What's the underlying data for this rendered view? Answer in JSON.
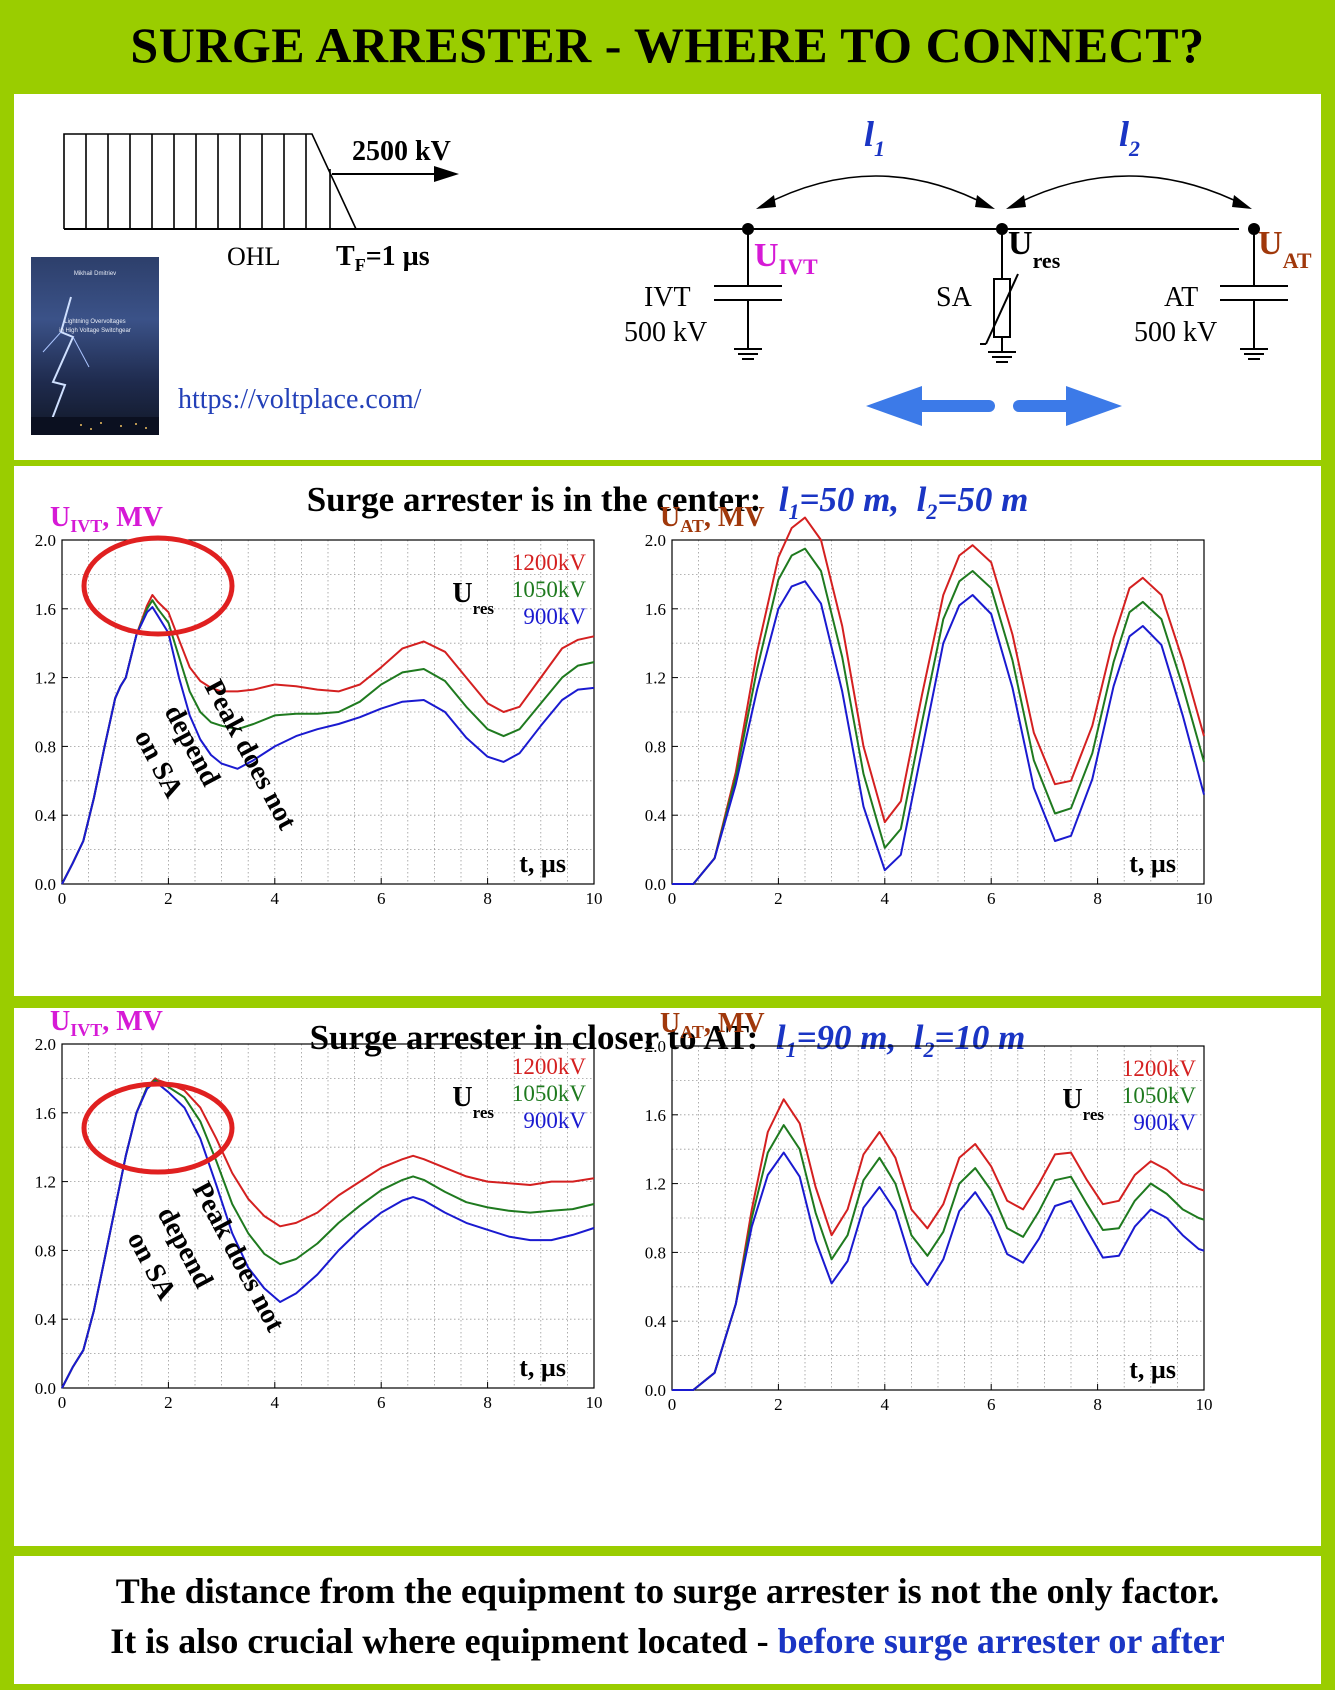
{
  "title": "SURGE ARRESTER - WHERE TO CONNECT?",
  "diagram": {
    "surge_label": "2500 kV",
    "ohl_label": "OHL",
    "tf_label": {
      "T": "T",
      "F": "F",
      "rest": "=1 µs"
    },
    "l1": {
      "letter": "l",
      "sub": "1"
    },
    "l2": {
      "letter": "l",
      "sub": "2"
    },
    "u_ivt": {
      "U": "U",
      "sub": "IVT"
    },
    "u_res": {
      "U": "U",
      "sub": "res"
    },
    "u_at": {
      "U": "U",
      "sub": "AT"
    },
    "ivt_label": "IVT",
    "ivt_voltage": "500 kV",
    "sa_label": "SA",
    "at_label": "AT",
    "at_voltage": "500 kV",
    "url": "https://voltplace.com/",
    "book": {
      "author": "Mikhail Dmitriev",
      "title_line1": "Lightning Overvoltages",
      "title_line2": "in High Voltage Switchgear"
    }
  },
  "case1": {
    "header_text": "Surge arrester is in the center:",
    "l1_value": "=50 m,",
    "l2_value": "=50 m",
    "l1": {
      "letter": "l",
      "sub": "1"
    },
    "l2": {
      "letter": "l",
      "sub": "2"
    }
  },
  "case2": {
    "header_text": "Surge arrester in closer to AT:",
    "l1_value": "=90 m,",
    "l2_value": "=10 m",
    "l1": {
      "letter": "l",
      "sub": "1"
    },
    "l2": {
      "letter": "l",
      "sub": "2"
    }
  },
  "annotation": "Peak does not depend on SA",
  "footer": {
    "line1": "The distance from the equipment to surge arrester is not the only factor.",
    "line2_black": "It is also crucial where equipment located - ",
    "line2_blue": "before surge arrester or after"
  },
  "colors": {
    "red": "#d42020",
    "green": "#1f7a1f",
    "blue": "#1a1ad0",
    "magenta": "#d61ad6",
    "brown": "#a0380b"
  },
  "chart_data": [
    {
      "id": "c1-ivt",
      "type": "line",
      "ylabel": {
        "U": "U",
        "sub": "IVT",
        "rest": ", MV"
      },
      "xlabel": "t, µs",
      "xlim": [
        0,
        10
      ],
      "ylim": [
        0,
        2
      ],
      "xticks": [
        "0",
        "2",
        "4",
        "6",
        "8",
        "10"
      ],
      "yticks": [
        "0.0",
        "0.4",
        "0.8",
        "1.2",
        "1.6",
        "2.0"
      ],
      "grid": true,
      "legend": {
        "title": "U",
        "title_sub": "res",
        "entries": [
          "1200kV",
          "1050kV",
          "900kV"
        ]
      },
      "series": [
        {
          "name": "1200kV",
          "color": "red",
          "x": [
            0,
            0.2,
            0.4,
            0.6,
            0.8,
            1.0,
            1.1,
            1.2,
            1.4,
            1.6,
            1.7,
            1.8,
            2.0,
            2.2,
            2.4,
            2.6,
            2.8,
            3.0,
            3.3,
            3.6,
            4.0,
            4.4,
            4.8,
            5.2,
            5.6,
            6.0,
            6.4,
            6.8,
            7.2,
            7.6,
            8.0,
            8.3,
            8.6,
            9.0,
            9.4,
            9.7,
            10
          ],
          "y": [
            0,
            0.12,
            0.25,
            0.5,
            0.8,
            1.08,
            1.15,
            1.2,
            1.45,
            1.62,
            1.68,
            1.64,
            1.58,
            1.42,
            1.26,
            1.18,
            1.14,
            1.12,
            1.12,
            1.13,
            1.16,
            1.15,
            1.13,
            1.12,
            1.16,
            1.26,
            1.37,
            1.41,
            1.35,
            1.2,
            1.05,
            1.0,
            1.03,
            1.2,
            1.37,
            1.42,
            1.44
          ]
        },
        {
          "name": "1050kV",
          "color": "green",
          "x": [
            0,
            0.2,
            0.4,
            0.6,
            0.8,
            1.0,
            1.1,
            1.2,
            1.4,
            1.6,
            1.7,
            1.8,
            2.0,
            2.2,
            2.4,
            2.6,
            2.8,
            3.0,
            3.3,
            3.6,
            4.0,
            4.4,
            4.8,
            5.2,
            5.6,
            6.0,
            6.4,
            6.8,
            7.2,
            7.6,
            8.0,
            8.3,
            8.6,
            9.0,
            9.4,
            9.7,
            10
          ],
          "y": [
            0,
            0.12,
            0.25,
            0.5,
            0.8,
            1.08,
            1.15,
            1.2,
            1.45,
            1.6,
            1.65,
            1.6,
            1.52,
            1.32,
            1.12,
            1.0,
            0.94,
            0.92,
            0.9,
            0.93,
            0.98,
            0.99,
            0.99,
            1.0,
            1.06,
            1.16,
            1.23,
            1.25,
            1.18,
            1.03,
            0.9,
            0.86,
            0.9,
            1.05,
            1.2,
            1.27,
            1.29
          ]
        },
        {
          "name": "900kV",
          "color": "blue",
          "x": [
            0,
            0.2,
            0.4,
            0.6,
            0.8,
            1.0,
            1.1,
            1.2,
            1.4,
            1.6,
            1.7,
            1.8,
            2.0,
            2.2,
            2.4,
            2.6,
            2.8,
            3.0,
            3.3,
            3.6,
            4.0,
            4.4,
            4.8,
            5.2,
            5.6,
            6.0,
            6.4,
            6.8,
            7.2,
            7.6,
            8.0,
            8.3,
            8.6,
            9.0,
            9.4,
            9.7,
            10
          ],
          "y": [
            0,
            0.12,
            0.25,
            0.5,
            0.8,
            1.08,
            1.15,
            1.2,
            1.45,
            1.58,
            1.61,
            1.56,
            1.46,
            1.2,
            0.98,
            0.84,
            0.75,
            0.7,
            0.67,
            0.72,
            0.8,
            0.86,
            0.9,
            0.93,
            0.97,
            1.02,
            1.06,
            1.07,
            1.0,
            0.85,
            0.74,
            0.71,
            0.76,
            0.92,
            1.07,
            1.13,
            1.14
          ]
        }
      ]
    },
    {
      "id": "c1-at",
      "type": "line",
      "ylabel": {
        "U": "U",
        "sub": "AT",
        "rest": ", MV"
      },
      "xlabel": "t, µs",
      "xlim": [
        0,
        10
      ],
      "ylim": [
        0,
        2
      ],
      "xticks": [
        "0",
        "2",
        "4",
        "6",
        "8",
        "10"
      ],
      "yticks": [
        "0.0",
        "0.4",
        "0.8",
        "1.2",
        "1.6",
        "2.0"
      ],
      "grid": true,
      "series": [
        {
          "name": "1200kV",
          "color": "red",
          "x": [
            0,
            0.4,
            0.8,
            1.2,
            1.6,
            2.0,
            2.25,
            2.5,
            2.8,
            3.2,
            3.6,
            4.0,
            4.3,
            4.7,
            5.1,
            5.4,
            5.65,
            6.0,
            6.4,
            6.8,
            7.2,
            7.5,
            7.9,
            8.3,
            8.6,
            8.85,
            9.2,
            9.6,
            10
          ],
          "y": [
            0,
            0,
            0.15,
            0.65,
            1.35,
            1.9,
            2.07,
            2.13,
            2.0,
            1.5,
            0.8,
            0.36,
            0.48,
            1.1,
            1.68,
            1.91,
            1.97,
            1.87,
            1.45,
            0.88,
            0.58,
            0.6,
            0.92,
            1.43,
            1.72,
            1.78,
            1.68,
            1.3,
            0.86
          ]
        },
        {
          "name": "1050kV",
          "color": "green",
          "x": [
            0,
            0.4,
            0.8,
            1.2,
            1.6,
            2.0,
            2.25,
            2.5,
            2.8,
            3.2,
            3.6,
            4.0,
            4.3,
            4.7,
            5.1,
            5.4,
            5.65,
            6.0,
            6.4,
            6.8,
            7.2,
            7.5,
            7.9,
            8.3,
            8.6,
            8.85,
            9.2,
            9.6,
            10
          ],
          "y": [
            0,
            0,
            0.15,
            0.62,
            1.25,
            1.77,
            1.91,
            1.95,
            1.82,
            1.32,
            0.64,
            0.21,
            0.32,
            0.94,
            1.54,
            1.76,
            1.82,
            1.72,
            1.3,
            0.72,
            0.41,
            0.44,
            0.76,
            1.29,
            1.58,
            1.64,
            1.54,
            1.15,
            0.71
          ]
        },
        {
          "name": "900kV",
          "color": "blue",
          "x": [
            0,
            0.4,
            0.8,
            1.2,
            1.6,
            2.0,
            2.25,
            2.5,
            2.8,
            3.2,
            3.6,
            4.0,
            4.3,
            4.7,
            5.1,
            5.4,
            5.65,
            6.0,
            6.4,
            6.8,
            7.2,
            7.5,
            7.9,
            8.3,
            8.6,
            8.85,
            9.2,
            9.6,
            10
          ],
          "y": [
            0,
            0,
            0.15,
            0.58,
            1.13,
            1.6,
            1.73,
            1.76,
            1.63,
            1.12,
            0.45,
            0.08,
            0.17,
            0.78,
            1.4,
            1.62,
            1.68,
            1.57,
            1.14,
            0.56,
            0.25,
            0.28,
            0.61,
            1.15,
            1.44,
            1.5,
            1.39,
            0.98,
            0.52
          ]
        }
      ]
    },
    {
      "id": "c2-ivt",
      "type": "line",
      "ylabel": {
        "U": "U",
        "sub": "IVT",
        "rest": ", MV"
      },
      "xlabel": "t, µs",
      "xlim": [
        0,
        10
      ],
      "ylim": [
        0,
        2
      ],
      "xticks": [
        "0",
        "2",
        "4",
        "6",
        "8",
        "10"
      ],
      "yticks": [
        "0.0",
        "0.4",
        "0.8",
        "1.2",
        "1.6",
        "2.0"
      ],
      "grid": true,
      "legend": {
        "title": "U",
        "title_sub": "res",
        "entries": [
          "1200kV",
          "1050kV",
          "900kV"
        ]
      },
      "series": [
        {
          "name": "1200kV",
          "color": "red",
          "x": [
            0,
            0.2,
            0.4,
            0.6,
            0.8,
            1.0,
            1.2,
            1.4,
            1.6,
            1.75,
            1.8,
            2.0,
            2.3,
            2.6,
            2.9,
            3.2,
            3.5,
            3.8,
            4.1,
            4.4,
            4.8,
            5.2,
            5.6,
            6.0,
            6.4,
            6.6,
            6.8,
            7.2,
            7.6,
            8.0,
            8.4,
            8.8,
            9.2,
            9.6,
            10
          ],
          "y": [
            0,
            0.12,
            0.22,
            0.45,
            0.75,
            1.05,
            1.35,
            1.6,
            1.75,
            1.8,
            1.79,
            1.77,
            1.73,
            1.63,
            1.45,
            1.25,
            1.1,
            1.0,
            0.94,
            0.96,
            1.02,
            1.12,
            1.2,
            1.28,
            1.33,
            1.35,
            1.33,
            1.28,
            1.23,
            1.2,
            1.19,
            1.18,
            1.2,
            1.2,
            1.22
          ]
        },
        {
          "name": "1050kV",
          "color": "green",
          "x": [
            0,
            0.2,
            0.4,
            0.6,
            0.8,
            1.0,
            1.2,
            1.4,
            1.6,
            1.75,
            1.8,
            2.0,
            2.3,
            2.6,
            2.9,
            3.2,
            3.5,
            3.8,
            4.1,
            4.4,
            4.8,
            5.2,
            5.6,
            6.0,
            6.4,
            6.6,
            6.8,
            7.2,
            7.6,
            8.0,
            8.4,
            8.8,
            9.2,
            9.6,
            10
          ],
          "y": [
            0,
            0.12,
            0.22,
            0.45,
            0.75,
            1.05,
            1.35,
            1.6,
            1.75,
            1.79,
            1.78,
            1.75,
            1.69,
            1.55,
            1.32,
            1.07,
            0.9,
            0.78,
            0.72,
            0.75,
            0.84,
            0.96,
            1.06,
            1.15,
            1.21,
            1.23,
            1.21,
            1.14,
            1.08,
            1.05,
            1.03,
            1.02,
            1.03,
            1.04,
            1.07
          ]
        },
        {
          "name": "900kV",
          "color": "blue",
          "x": [
            0,
            0.2,
            0.4,
            0.6,
            0.8,
            1.0,
            1.2,
            1.4,
            1.6,
            1.75,
            1.8,
            2.0,
            2.3,
            2.6,
            2.9,
            3.2,
            3.5,
            3.8,
            4.1,
            4.4,
            4.8,
            5.2,
            5.6,
            6.0,
            6.4,
            6.6,
            6.8,
            7.2,
            7.6,
            8.0,
            8.4,
            8.8,
            9.2,
            9.6,
            10
          ],
          "y": [
            0,
            0.12,
            0.22,
            0.45,
            0.75,
            1.05,
            1.35,
            1.6,
            1.74,
            1.78,
            1.77,
            1.72,
            1.63,
            1.45,
            1.18,
            0.9,
            0.7,
            0.58,
            0.5,
            0.55,
            0.66,
            0.8,
            0.92,
            1.02,
            1.09,
            1.11,
            1.09,
            1.02,
            0.96,
            0.92,
            0.88,
            0.86,
            0.86,
            0.89,
            0.93
          ]
        }
      ]
    },
    {
      "id": "c2-at",
      "type": "line",
      "ylabel": {
        "U": "U",
        "sub": "AT",
        "rest": ", MV"
      },
      "xlabel": "t, µs",
      "xlim": [
        0,
        10
      ],
      "ylim": [
        0,
        2
      ],
      "xticks": [
        "0",
        "2",
        "4",
        "6",
        "8",
        "10"
      ],
      "yticks": [
        "0.0",
        "0.4",
        "0.8",
        "1.2",
        "1.6",
        "2.0"
      ],
      "grid": true,
      "legend": {
        "title": "U",
        "title_sub": "res",
        "entries": [
          "1200kV",
          "1050kV",
          "900kV"
        ]
      },
      "series": [
        {
          "name": "1200kV",
          "color": "red",
          "x": [
            0,
            0.4,
            0.8,
            1.2,
            1.5,
            1.8,
            2.1,
            2.4,
            2.7,
            3.0,
            3.3,
            3.6,
            3.9,
            4.2,
            4.5,
            4.8,
            5.1,
            5.4,
            5.7,
            6.0,
            6.3,
            6.6,
            6.9,
            7.2,
            7.5,
            7.8,
            8.1,
            8.4,
            8.7,
            9.0,
            9.3,
            9.6,
            9.9,
            10
          ],
          "y": [
            0,
            0,
            0.1,
            0.5,
            1.05,
            1.5,
            1.69,
            1.55,
            1.18,
            0.9,
            1.05,
            1.37,
            1.5,
            1.35,
            1.05,
            0.94,
            1.08,
            1.35,
            1.43,
            1.3,
            1.1,
            1.05,
            1.2,
            1.37,
            1.38,
            1.22,
            1.08,
            1.1,
            1.25,
            1.33,
            1.28,
            1.2,
            1.17,
            1.16
          ]
        },
        {
          "name": "1050kV",
          "color": "green",
          "x": [
            0,
            0.4,
            0.8,
            1.2,
            1.5,
            1.8,
            2.1,
            2.4,
            2.7,
            3.0,
            3.3,
            3.6,
            3.9,
            4.2,
            4.5,
            4.8,
            5.1,
            5.4,
            5.7,
            6.0,
            6.3,
            6.6,
            6.9,
            7.2,
            7.5,
            7.8,
            8.1,
            8.4,
            8.7,
            9.0,
            9.3,
            9.6,
            9.9,
            10
          ],
          "y": [
            0,
            0,
            0.1,
            0.5,
            1.0,
            1.38,
            1.54,
            1.4,
            1.03,
            0.76,
            0.9,
            1.22,
            1.35,
            1.2,
            0.9,
            0.78,
            0.92,
            1.2,
            1.29,
            1.16,
            0.94,
            0.89,
            1.04,
            1.22,
            1.24,
            1.08,
            0.93,
            0.94,
            1.1,
            1.2,
            1.14,
            1.05,
            1.0,
            0.99
          ]
        },
        {
          "name": "900kV",
          "color": "blue",
          "x": [
            0,
            0.4,
            0.8,
            1.2,
            1.5,
            1.8,
            2.1,
            2.4,
            2.7,
            3.0,
            3.3,
            3.6,
            3.9,
            4.2,
            4.5,
            4.8,
            5.1,
            5.4,
            5.7,
            6.0,
            6.3,
            6.6,
            6.9,
            7.2,
            7.5,
            7.8,
            8.1,
            8.4,
            8.7,
            9.0,
            9.3,
            9.6,
            9.9,
            10
          ],
          "y": [
            0,
            0,
            0.1,
            0.5,
            0.95,
            1.25,
            1.38,
            1.24,
            0.87,
            0.62,
            0.75,
            1.06,
            1.18,
            1.04,
            0.74,
            0.61,
            0.76,
            1.04,
            1.15,
            1.01,
            0.79,
            0.74,
            0.88,
            1.07,
            1.1,
            0.93,
            0.77,
            0.78,
            0.95,
            1.05,
            1.0,
            0.9,
            0.82,
            0.81
          ]
        }
      ]
    }
  ]
}
